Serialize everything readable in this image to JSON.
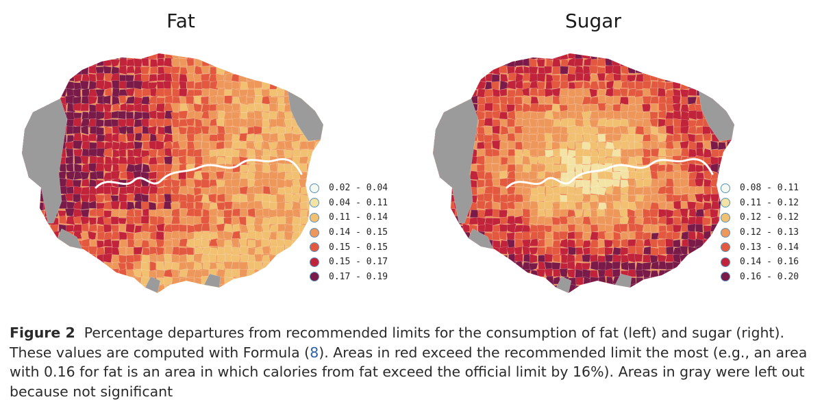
{
  "panels": [
    {
      "id": "fat",
      "title": "Fat",
      "legend": [
        {
          "label": "0.02 - 0.04",
          "color": "#f3f8f0"
        },
        {
          "label": "0.04 - 0.11",
          "color": "#f3e4a6"
        },
        {
          "label": "0.11 - 0.14",
          "color": "#f2c071"
        },
        {
          "label": "0.14 - 0.15",
          "color": "#ee975b"
        },
        {
          "label": "0.15 - 0.15",
          "color": "#e3593f"
        },
        {
          "label": "0.15 - 0.17",
          "color": "#c0233a"
        },
        {
          "label": "0.17 - 0.19",
          "color": "#7a1a48"
        }
      ]
    },
    {
      "id": "sugar",
      "title": "Sugar",
      "legend": [
        {
          "label": "0.08 - 0.11",
          "color": "#f3f8f0"
        },
        {
          "label": "0.11 - 0.12",
          "color": "#f3e4a6"
        },
        {
          "label": "0.12 - 0.12",
          "color": "#f2c071"
        },
        {
          "label": "0.12 - 0.13",
          "color": "#ee975b"
        },
        {
          "label": "0.13 - 0.14",
          "color": "#e3593f"
        },
        {
          "label": "0.14 - 0.16",
          "color": "#c0233a"
        },
        {
          "label": "0.16 - 0.20",
          "color": "#7a1a48"
        }
      ]
    }
  ],
  "colors": {
    "excluded_gray": "#9b9b9b",
    "river": "#ffffff",
    "legend_border": "#5a8fb8"
  },
  "caption": {
    "label": "Figure 2",
    "text_before_ref": "Percentage departures from recommended limits for the consumption of fat (left) and sugar (right). These values are computed with Formula (",
    "ref": "8",
    "text_after_ref": "). Areas in red exceed the recommended limit the most (e.g., an area with 0.16 for fat is an area in which calories from fat exceed the official limit by 16%). Areas in gray were left out because not significant"
  }
}
